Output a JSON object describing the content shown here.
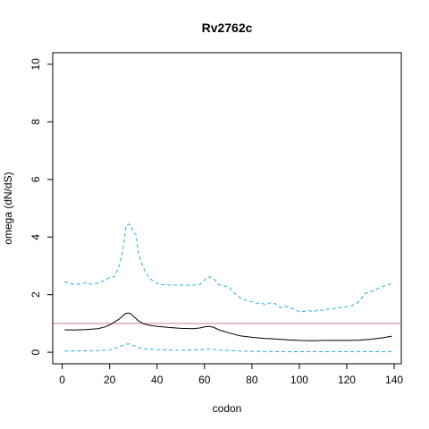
{
  "chart_data": {
    "type": "line",
    "title": "Rv2762c",
    "xlabel": "codon",
    "ylabel": "omega (dN/dS)",
    "xlim": [
      -4,
      143
    ],
    "ylim": [
      -0.4,
      10.4
    ],
    "xticks": [
      0,
      20,
      40,
      60,
      80,
      100,
      120,
      140
    ],
    "yticks": [
      0,
      2,
      4,
      6,
      8,
      10
    ],
    "reference_line": {
      "y": 1,
      "color": "#cc79a7"
    },
    "grid": false,
    "legend": "none",
    "series": [
      {
        "style": "solid",
        "color": "#000000",
        "x": [
          1,
          5,
          10,
          15,
          18,
          20,
          22,
          24,
          26,
          27,
          28,
          29,
          30,
          31,
          32,
          34,
          36,
          38,
          40,
          45,
          50,
          55,
          58,
          60,
          62,
          64,
          66,
          70,
          75,
          80,
          85,
          90,
          95,
          100,
          105,
          110,
          115,
          120,
          125,
          130,
          135,
          139
        ],
        "y": [
          0.78,
          0.77,
          0.79,
          0.82,
          0.88,
          0.95,
          1.05,
          1.15,
          1.3,
          1.35,
          1.36,
          1.33,
          1.25,
          1.18,
          1.1,
          1.0,
          0.95,
          0.92,
          0.9,
          0.86,
          0.83,
          0.82,
          0.84,
          0.88,
          0.9,
          0.86,
          0.78,
          0.68,
          0.57,
          0.52,
          0.48,
          0.46,
          0.43,
          0.41,
          0.4,
          0.41,
          0.41,
          0.41,
          0.42,
          0.45,
          0.5,
          0.56
        ]
      },
      {
        "style": "dashed",
        "color": "#29a8e0",
        "x": [
          1,
          3,
          5,
          8,
          10,
          12,
          15,
          18,
          20,
          22,
          23,
          24,
          25,
          26,
          27,
          28,
          29,
          30,
          31,
          32,
          33,
          34,
          35,
          36,
          37,
          38,
          40,
          42,
          45,
          50,
          55,
          58,
          60,
          61,
          62,
          63,
          64,
          65,
          66,
          68,
          70,
          72,
          74,
          76,
          78,
          80,
          82,
          84,
          86,
          88,
          90,
          92,
          94,
          96,
          98,
          100,
          102,
          104,
          106,
          108,
          110,
          112,
          114,
          116,
          118,
          120,
          122,
          124,
          126,
          128,
          130,
          132,
          134,
          136,
          138,
          139
        ],
        "y": [
          2.45,
          2.4,
          2.35,
          2.38,
          2.42,
          2.36,
          2.4,
          2.5,
          2.6,
          2.62,
          2.8,
          3.0,
          3.3,
          3.8,
          4.4,
          4.45,
          4.4,
          4.15,
          4.1,
          3.5,
          3.2,
          3.0,
          2.8,
          2.7,
          2.55,
          2.5,
          2.4,
          2.35,
          2.33,
          2.33,
          2.33,
          2.35,
          2.5,
          2.6,
          2.62,
          2.58,
          2.55,
          2.45,
          2.35,
          2.3,
          2.28,
          2.1,
          1.95,
          1.85,
          1.8,
          1.75,
          1.7,
          1.7,
          1.65,
          1.72,
          1.68,
          1.55,
          1.6,
          1.55,
          1.5,
          1.4,
          1.42,
          1.45,
          1.4,
          1.48,
          1.45,
          1.5,
          1.5,
          1.55,
          1.55,
          1.58,
          1.62,
          1.68,
          1.85,
          2.05,
          2.1,
          2.15,
          2.25,
          2.3,
          2.35,
          2.4
        ]
      },
      {
        "style": "dashed",
        "color": "#29a8e0",
        "x": [
          1,
          5,
          10,
          15,
          20,
          22,
          24,
          26,
          27,
          28,
          29,
          30,
          32,
          34,
          36,
          38,
          40,
          45,
          50,
          55,
          60,
          62,
          64,
          66,
          70,
          75,
          80,
          90,
          100,
          110,
          120,
          130,
          139
        ],
        "y": [
          0.04,
          0.04,
          0.05,
          0.06,
          0.08,
          0.12,
          0.18,
          0.25,
          0.28,
          0.29,
          0.27,
          0.23,
          0.17,
          0.13,
          0.11,
          0.1,
          0.09,
          0.08,
          0.07,
          0.08,
          0.1,
          0.11,
          0.1,
          0.08,
          0.06,
          0.04,
          0.03,
          0.02,
          0.02,
          0.02,
          0.02,
          0.02,
          0.02
        ]
      }
    ]
  }
}
